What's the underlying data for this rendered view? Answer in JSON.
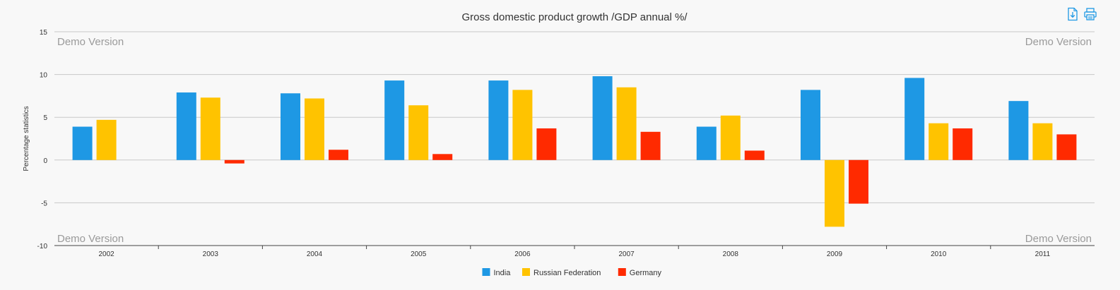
{
  "toolbar": {
    "export_icon": "download-icon",
    "print_icon": "print-icon",
    "accent": "#1e98e4"
  },
  "watermark": "Demo Version",
  "chart_data": {
    "type": "bar",
    "title": "Gross domestic product growth /GDP annual %/",
    "xlabel": "",
    "ylabel": "Percentage statistics",
    "ylim": [
      -10,
      15
    ],
    "yticks": [
      15,
      10,
      5,
      0,
      -5,
      -10
    ],
    "grid": true,
    "legend_position": "bottom",
    "categories": [
      "2002",
      "2003",
      "2004",
      "2005",
      "2006",
      "2007",
      "2008",
      "2009",
      "2010",
      "2011"
    ],
    "series": [
      {
        "name": "India",
        "color": "#1e98e4",
        "values": [
          3.9,
          7.9,
          7.8,
          9.3,
          9.3,
          9.8,
          3.9,
          8.2,
          9.6,
          6.9
        ]
      },
      {
        "name": "Russian Federation",
        "color": "#ffc300",
        "values": [
          4.7,
          7.3,
          7.2,
          6.4,
          8.2,
          8.5,
          5.2,
          -7.8,
          4.3,
          4.3
        ]
      },
      {
        "name": "Germany",
        "color": "#ff2a00",
        "values": [
          0.0,
          -0.4,
          1.2,
          0.7,
          3.7,
          3.3,
          1.1,
          -5.1,
          3.7,
          3.0
        ]
      }
    ]
  }
}
